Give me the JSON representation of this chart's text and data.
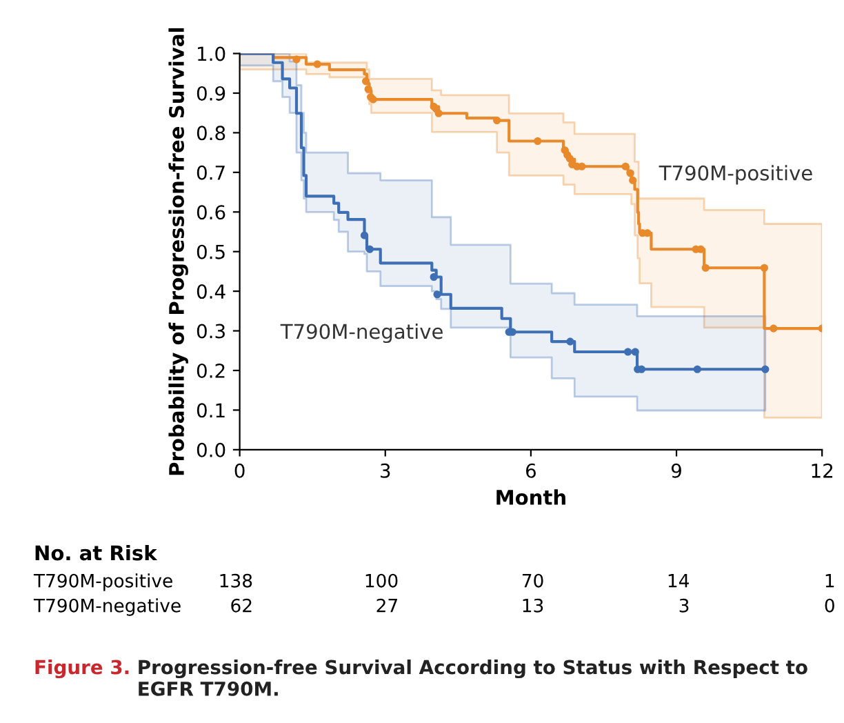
{
  "chart_data": {
    "type": "step",
    "xlabel": "Month",
    "ylabel": "Probability of Progression-free Survival",
    "xlim": [
      0,
      12
    ],
    "xticks": [
      0,
      3,
      6,
      9,
      12
    ],
    "ylim": [
      0,
      1.0
    ],
    "yticks": [
      {
        "value": 0,
        "label": "0.0"
      },
      0.1,
      0.2,
      0.3,
      0.4,
      0.5,
      0.6,
      0.7,
      0.8,
      0.9,
      {
        "value": 1,
        "label": "1.0"
      }
    ],
    "grid": false,
    "legend": false,
    "series": [
      {
        "name": "T790M-positive",
        "color": "#e8892b",
        "x": [
          0,
          0.69,
          1.37,
          1.85,
          2.57,
          2.62,
          2.67,
          2.71,
          3.96,
          4.1,
          4.15,
          4.68,
          5.3,
          5.55,
          6.67,
          6.75,
          6.8,
          6.9,
          8.0,
          8.07,
          8.14,
          8.2,
          8.22,
          8.24,
          8.48,
          9.57,
          10.81,
          12
        ],
        "values": [
          1.0,
          0.99,
          0.973,
          0.959,
          0.948,
          0.924,
          0.907,
          0.884,
          0.866,
          0.849,
          0.849,
          0.837,
          0.831,
          0.779,
          0.756,
          0.744,
          0.733,
          0.715,
          0.698,
          0.68,
          0.657,
          0.599,
          0.57,
          0.547,
          0.506,
          0.459,
          0.306,
          0.306
        ],
        "upper": [
          1.0,
          1.0,
          0.977,
          0.977,
          0.977,
          0.96,
          0.936,
          0.936,
          0.907,
          0.907,
          0.895,
          0.895,
          0.895,
          0.849,
          0.826,
          0.826,
          0.826,
          0.797,
          0.797,
          0.797,
          0.727,
          0.727,
          0.634,
          0.634,
          0.634,
          0.605,
          0.57,
          0.57
        ],
        "lower": [
          0.96,
          0.96,
          0.948,
          0.94,
          0.93,
          0.9,
          0.872,
          0.85,
          0.802,
          0.802,
          0.802,
          0.802,
          0.75,
          0.692,
          0.669,
          0.669,
          0.669,
          0.645,
          0.645,
          0.62,
          0.541,
          0.483,
          0.483,
          0.42,
          0.36,
          0.308,
          0.081,
          0.081
        ]
      },
      {
        "name": "T790M-negative",
        "color": "#3e6fb5",
        "x": [
          0,
          0.69,
          0.88,
          1.03,
          1.17,
          1.27,
          1.32,
          1.37,
          1.94,
          2.04,
          2.23,
          2.57,
          2.62,
          2.9,
          3.96,
          4.05,
          4.15,
          4.35,
          5.4,
          5.58,
          6.43,
          6.9,
          8.19,
          10.83
        ],
        "values": [
          1.0,
          0.977,
          0.936,
          0.913,
          0.849,
          0.762,
          0.692,
          0.64,
          0.622,
          0.599,
          0.581,
          0.541,
          0.506,
          0.471,
          0.453,
          0.436,
          0.392,
          0.357,
          0.331,
          0.297,
          0.273,
          0.247,
          0.203,
          0.203
        ],
        "upper": [
          1.0,
          1.0,
          1.0,
          0.98,
          0.92,
          0.85,
          0.8,
          0.75,
          0.75,
          0.75,
          0.698,
          0.698,
          0.698,
          0.68,
          0.587,
          0.587,
          0.587,
          0.517,
          0.517,
          0.419,
          0.395,
          0.366,
          0.337,
          0.337
        ],
        "lower": [
          0.97,
          0.93,
          0.89,
          0.85,
          0.75,
          0.68,
          0.634,
          0.6,
          0.58,
          0.55,
          0.5,
          0.494,
          0.45,
          0.413,
          0.4,
          0.38,
          0.355,
          0.308,
          0.308,
          0.233,
          0.18,
          0.134,
          0.099,
          0.099
        ]
      },
      {
        "type": "scatter",
        "marker": "circle",
        "color": "#e8892b",
        "x": [
          1.17,
          1.6,
          2.6,
          2.65,
          2.7,
          2.75,
          4.0,
          4.05,
          4.1,
          5.3,
          6.14,
          6.7,
          6.75,
          6.8,
          6.85,
          6.95,
          7.05,
          7.95,
          8.05,
          8.1,
          8.3,
          8.4,
          9.4,
          9.5,
          9.6,
          10.81,
          11.0,
          12.0
        ],
        "values": [
          0.985,
          0.973,
          0.93,
          0.91,
          0.89,
          0.884,
          0.866,
          0.86,
          0.849,
          0.831,
          0.779,
          0.756,
          0.744,
          0.735,
          0.72,
          0.715,
          0.715,
          0.715,
          0.698,
          0.68,
          0.547,
          0.547,
          0.506,
          0.506,
          0.459,
          0.459,
          0.306,
          0.306
        ]
      },
      {
        "type": "scatter",
        "marker": "circle",
        "color": "#3e6fb5",
        "x": [
          2.57,
          2.68,
          4.0,
          4.07,
          5.55,
          5.62,
          6.81,
          8.0,
          8.15,
          8.2,
          8.28,
          9.43,
          10.83
        ],
        "values": [
          0.541,
          0.506,
          0.436,
          0.392,
          0.297,
          0.297,
          0.273,
          0.247,
          0.247,
          0.203,
          0.203,
          0.203,
          0.203
        ]
      }
    ],
    "annotations": [
      "No. at Risk",
      "T790M-positive",
      "138",
      "100",
      "70",
      "14",
      "1",
      "T790M-negative",
      "62",
      "27",
      "13",
      "3",
      "0",
      "Figure 3.",
      "Progression-free Survival According to Status with Respect to EGFR T790M."
    ]
  }
}
